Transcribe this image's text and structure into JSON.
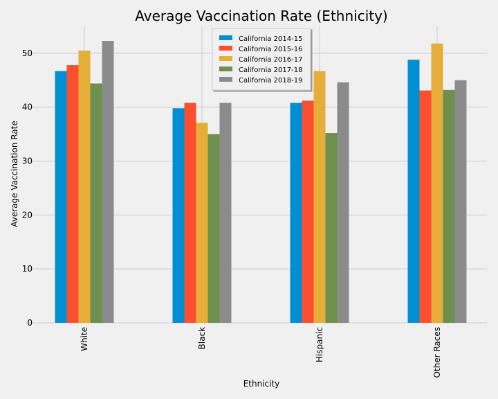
{
  "chart_data": {
    "type": "bar",
    "title": "Average Vaccination Rate (Ethnicity)",
    "xlabel": "Ethnicity",
    "ylabel": "Average Vaccination Rate",
    "categories": [
      "White",
      "Black",
      "Hispanic",
      "Other Races"
    ],
    "ylim": [
      0,
      55
    ],
    "yticks": [
      0,
      10,
      20,
      30,
      40,
      50
    ],
    "grid": true,
    "legend_position": "top-center",
    "series": [
      {
        "name": "California 2014-15",
        "color": "#008fd5",
        "values": [
          46.7,
          39.8,
          40.8,
          48.8
        ]
      },
      {
        "name": "California 2015-16",
        "color": "#fc4f30",
        "values": [
          47.8,
          40.8,
          41.2,
          43.1
        ]
      },
      {
        "name": "California 2016-17",
        "color": "#e5ae38",
        "values": [
          50.5,
          37.1,
          46.7,
          51.8
        ]
      },
      {
        "name": "California 2017-18",
        "color": "#6d904f",
        "values": [
          44.4,
          35.0,
          35.2,
          43.2
        ]
      },
      {
        "name": "California 2018-19",
        "color": "#8b8b8b",
        "values": [
          52.3,
          40.8,
          44.6,
          45.0
        ]
      }
    ]
  }
}
